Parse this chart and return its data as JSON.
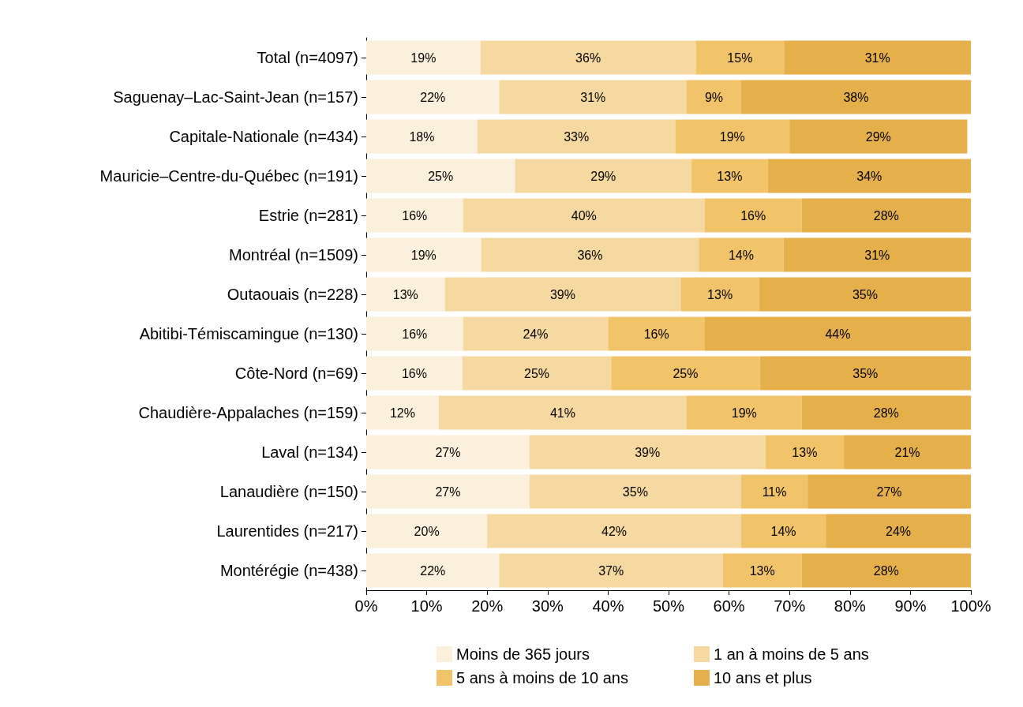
{
  "chart_data": {
    "type": "bar",
    "orientation": "horizontal",
    "stacked": true,
    "grid": false,
    "legend": "bottom",
    "categories": [
      "Total (n=4097)",
      "Saguenay–Lac-Saint-Jean (n=157)",
      "Capitale-Nationale (n=434)",
      "Mauricie–Centre-du-Québec (n=191)",
      "Estrie (n=281)",
      "Montréal (n=1509)",
      "Outaouais (n=228)",
      "Abitibi-Témiscamingue (n=130)",
      "Côte-Nord (n=69)",
      "Chaudière-Appalaches (n=159)",
      "Laval (n=134)",
      "Lanaudière (n=150)",
      "Laurentides (n=217)",
      "Montérégie (n=438)"
    ],
    "xlim": [
      0,
      100
    ],
    "xticks": [
      {
        "value": 0,
        "label": "0%"
      },
      {
        "value": 10,
        "label": "10%"
      },
      {
        "value": 20,
        "label": "20%"
      },
      {
        "value": 30,
        "label": "30%"
      },
      {
        "value": 40,
        "label": "40%"
      },
      {
        "value": 50,
        "label": "50%"
      },
      {
        "value": 60,
        "label": "60%"
      },
      {
        "value": 70,
        "label": "70%"
      },
      {
        "value": 80,
        "label": "80%"
      },
      {
        "value": 90,
        "label": "90%"
      },
      {
        "value": 100,
        "label": "100%"
      }
    ],
    "series": [
      {
        "name": "Moins de 365 jours",
        "color": "#fbf0dc",
        "values": [
          18.9,
          22,
          18.4,
          24.6,
          16,
          19,
          13,
          16,
          15.9,
          12,
          27,
          27,
          20,
          22
        ],
        "value_labels": [
          "19%",
          "22%",
          "18%",
          "25%",
          "16%",
          "19%",
          "13%",
          "16%",
          "16%",
          "12%",
          "27%",
          "27%",
          "20%",
          "22%"
        ]
      },
      {
        "name": "1 an à moins de 5 ans",
        "color": "#f5d9a0",
        "values": [
          35.6,
          31,
          32.7,
          29.2,
          40,
          36,
          39,
          24,
          24.6,
          41,
          39,
          35,
          42,
          37
        ],
        "value_labels": [
          "36%",
          "31%",
          "33%",
          "29%",
          "40%",
          "36%",
          "39%",
          "24%",
          "25%",
          "41%",
          "39%",
          "35%",
          "42%",
          "37%"
        ]
      },
      {
        "name": "5 ans à moins de 10 ans",
        "color": "#f2c46a",
        "values": [
          14.6,
          9,
          18.9,
          12.6,
          16,
          14,
          13,
          16,
          24.6,
          19,
          13,
          11,
          14,
          13
        ],
        "value_labels": [
          "15%",
          "9%",
          "19%",
          "13%",
          "16%",
          "14%",
          "13%",
          "16%",
          "25%",
          "19%",
          "13%",
          "11%",
          "14%",
          "13%"
        ]
      },
      {
        "name": "10 ans et plus",
        "color": "#e5b04a",
        "values": [
          30.9,
          38,
          29.4,
          33.6,
          28,
          31,
          35,
          44,
          34.9,
          28,
          21,
          27,
          24,
          28
        ],
        "value_labels": [
          "31%",
          "38%",
          "29%",
          "34%",
          "28%",
          "31%",
          "35%",
          "44%",
          "35%",
          "28%",
          "21%",
          "27%",
          "24%",
          "28%"
        ]
      }
    ]
  }
}
